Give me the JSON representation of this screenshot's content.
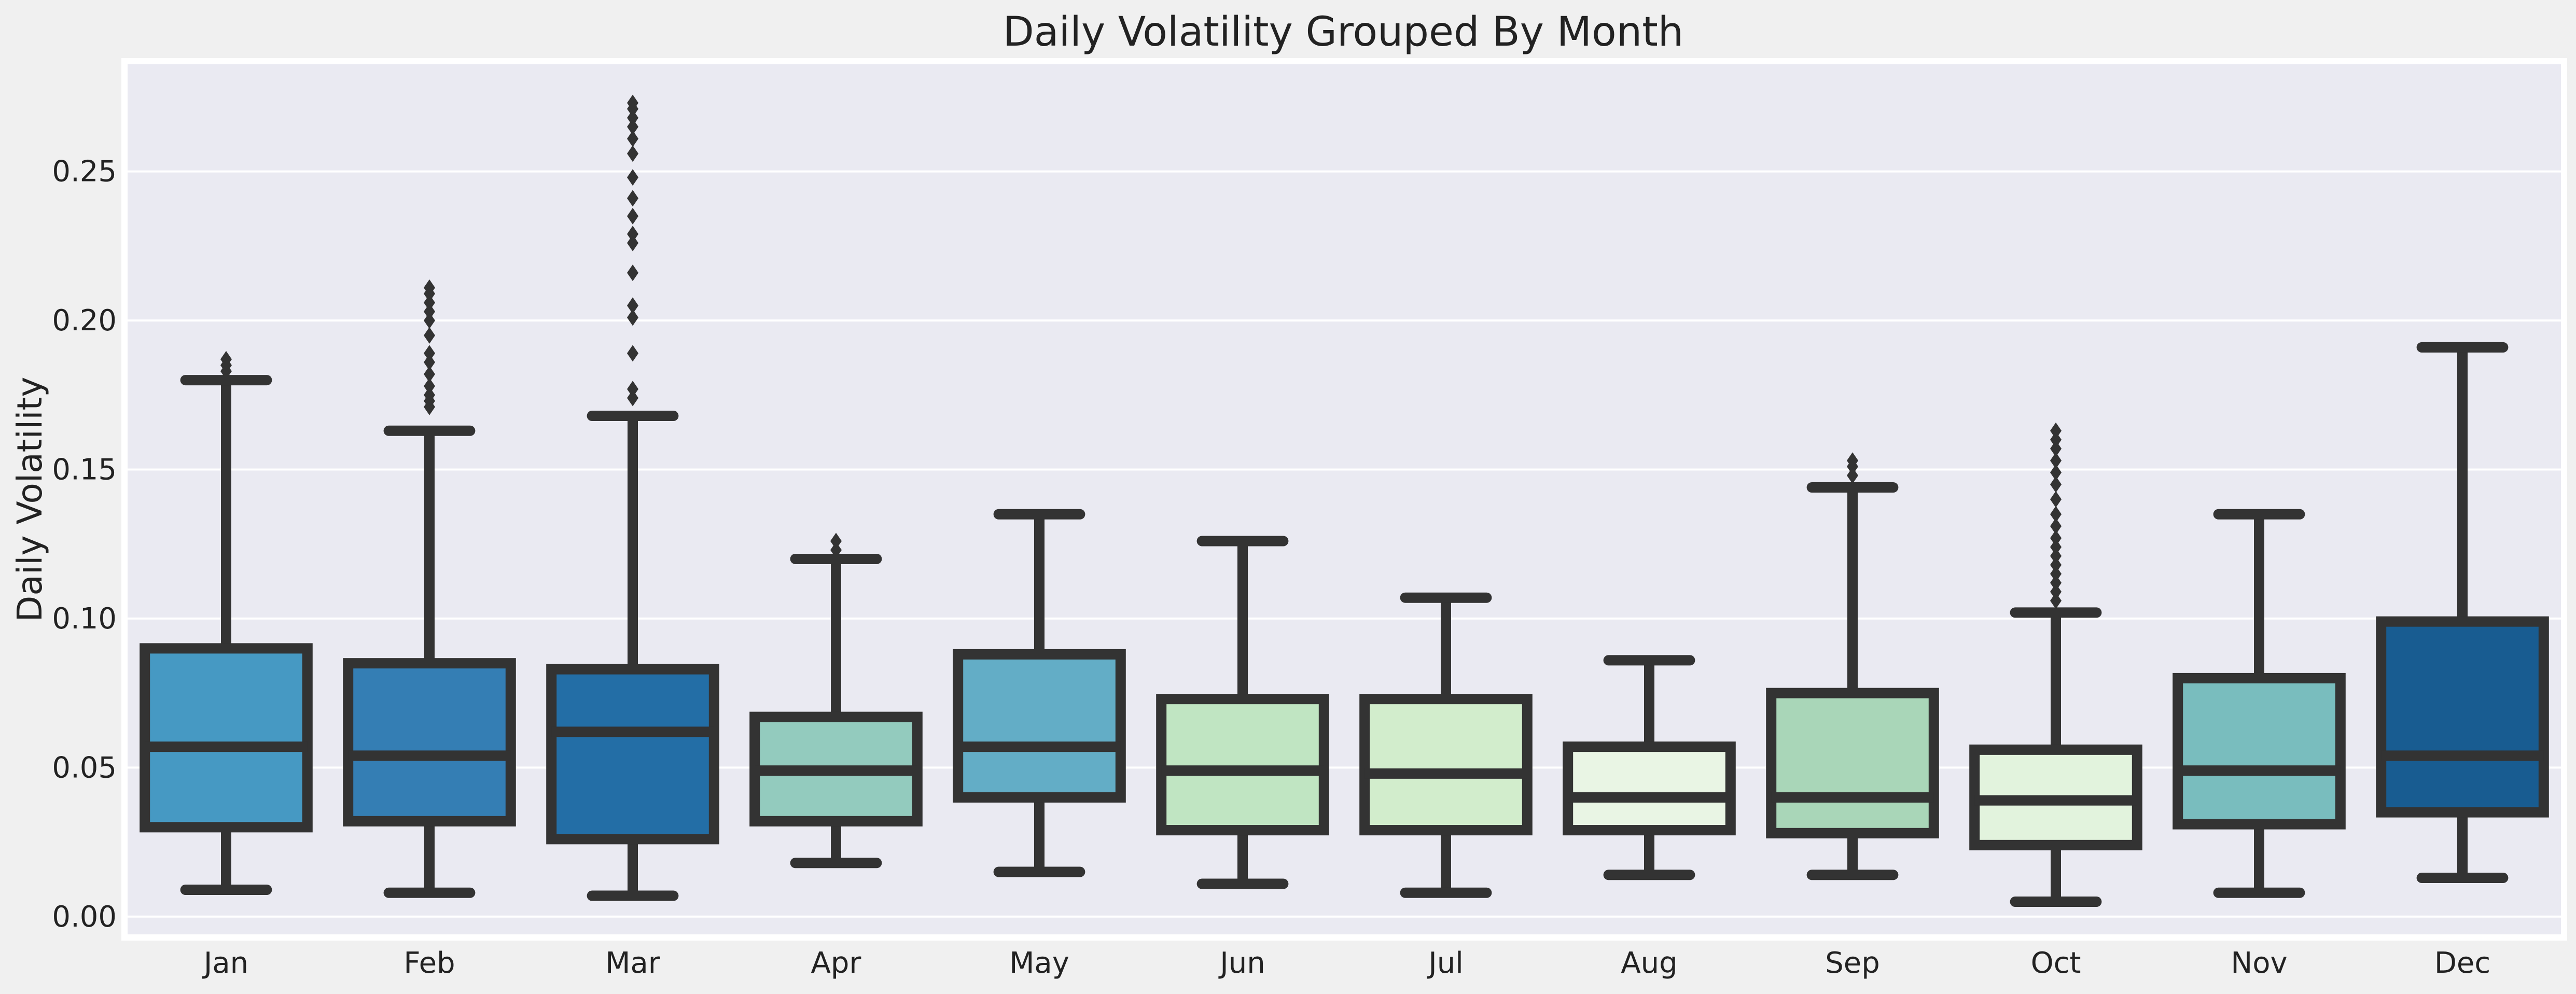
{
  "chart_data": {
    "type": "box",
    "title": "Daily Volatility Grouped By Month",
    "xlabel": "",
    "ylabel": "Daily Volatility",
    "ylim": [
      -0.007,
      0.287
    ],
    "yticks": [
      0.0,
      0.05,
      0.1,
      0.15,
      0.2,
      0.25
    ],
    "ytick_labels": [
      "0.00",
      "0.05",
      "0.10",
      "0.15",
      "0.20",
      "0.25"
    ],
    "grid": true,
    "legend": "none",
    "categories": [
      "Jan",
      "Feb",
      "Mar",
      "Apr",
      "May",
      "Jun",
      "Jul",
      "Aug",
      "Sep",
      "Oct",
      "Nov",
      "Dec"
    ],
    "boxes": [
      {
        "label": "Jan",
        "color": "#4699C3",
        "whisker_low": 0.009,
        "q1": 0.03,
        "median": 0.057,
        "q3": 0.09,
        "whisker_high": 0.18,
        "outliers": [
          0.183,
          0.185,
          0.187
        ]
      },
      {
        "label": "Feb",
        "color": "#347EB4",
        "whisker_low": 0.008,
        "q1": 0.032,
        "median": 0.054,
        "q3": 0.085,
        "whisker_high": 0.163,
        "outliers": [
          0.171,
          0.173,
          0.175,
          0.178,
          0.182,
          0.186,
          0.189,
          0.195,
          0.2,
          0.203,
          0.206,
          0.209,
          0.211
        ]
      },
      {
        "label": "Mar",
        "color": "#236EA6",
        "whisker_low": 0.007,
        "q1": 0.026,
        "median": 0.062,
        "q3": 0.083,
        "whisker_high": 0.168,
        "outliers": [
          0.174,
          0.177,
          0.189,
          0.201,
          0.205,
          0.216,
          0.226,
          0.229,
          0.235,
          0.241,
          0.248,
          0.256,
          0.261,
          0.265,
          0.268,
          0.271,
          0.273
        ]
      },
      {
        "label": "Apr",
        "color": "#93CBBE",
        "whisker_low": 0.018,
        "q1": 0.032,
        "median": 0.049,
        "q3": 0.067,
        "whisker_high": 0.12,
        "outliers": [
          0.123,
          0.126
        ]
      },
      {
        "label": "May",
        "color": "#63ADC6",
        "whisker_low": 0.015,
        "q1": 0.04,
        "median": 0.057,
        "q3": 0.088,
        "whisker_high": 0.135,
        "outliers": []
      },
      {
        "label": "Jun",
        "color": "#C0E5C2",
        "whisker_low": 0.011,
        "q1": 0.029,
        "median": 0.049,
        "q3": 0.073,
        "whisker_high": 0.126,
        "outliers": []
      },
      {
        "label": "Jul",
        "color": "#D2EDCC",
        "whisker_low": 0.008,
        "q1": 0.029,
        "median": 0.048,
        "q3": 0.073,
        "whisker_high": 0.107,
        "outliers": []
      },
      {
        "label": "Aug",
        "color": "#E9F5E4",
        "whisker_low": 0.014,
        "q1": 0.029,
        "median": 0.04,
        "q3": 0.057,
        "whisker_high": 0.086,
        "outliers": []
      },
      {
        "label": "Sep",
        "color": "#A9D6B8",
        "whisker_low": 0.014,
        "q1": 0.028,
        "median": 0.04,
        "q3": 0.075,
        "whisker_high": 0.144,
        "outliers": [
          0.148,
          0.151,
          0.153
        ]
      },
      {
        "label": "Oct",
        "color": "#E2F3DD",
        "whisker_low": 0.005,
        "q1": 0.024,
        "median": 0.039,
        "q3": 0.056,
        "whisker_high": 0.102,
        "outliers": [
          0.106,
          0.109,
          0.112,
          0.115,
          0.118,
          0.121,
          0.124,
          0.127,
          0.131,
          0.135,
          0.14,
          0.145,
          0.149,
          0.153,
          0.157,
          0.16,
          0.163
        ]
      },
      {
        "label": "Nov",
        "color": "#79BDBE",
        "whisker_low": 0.008,
        "q1": 0.031,
        "median": 0.049,
        "q3": 0.08,
        "whisker_high": 0.135,
        "outliers": []
      },
      {
        "label": "Dec",
        "color": "#185C91",
        "whisker_low": 0.013,
        "q1": 0.035,
        "median": 0.054,
        "q3": 0.099,
        "whisker_high": 0.191,
        "outliers": []
      }
    ]
  }
}
